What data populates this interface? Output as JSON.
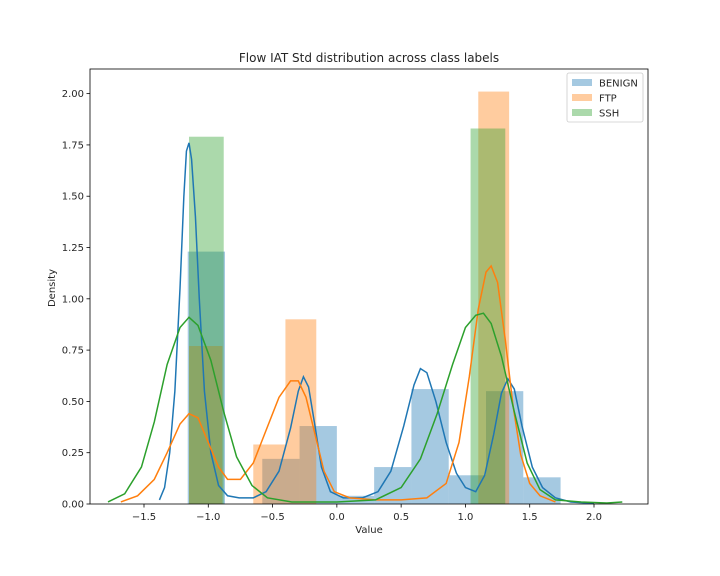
{
  "chart_data": {
    "type": "histogram_kde",
    "title": "Flow IAT Std distribution across class labels",
    "xlabel": "Value",
    "ylabel": "Density",
    "xlim": [
      -1.92,
      2.42
    ],
    "ylim": [
      0,
      2.12
    ],
    "xticks": [
      -1.5,
      -1.0,
      -0.5,
      0.0,
      0.5,
      1.0,
      1.5,
      2.0
    ],
    "xtick_labels": [
      "−1.5",
      "−1.0",
      "−0.5",
      "0.0",
      "0.5",
      "1.0",
      "1.5",
      "2.0"
    ],
    "yticks": [
      0.0,
      0.25,
      0.5,
      0.75,
      1.0,
      1.25,
      1.5,
      1.75,
      2.0
    ],
    "ytick_labels": [
      "0.00",
      "0.25",
      "0.50",
      "0.75",
      "1.00",
      "1.25",
      "1.50",
      "1.75",
      "2.00"
    ],
    "grid": false,
    "legend_position": "top-right",
    "series": [
      {
        "name": "BENIGN",
        "color": "#1f77b4",
        "bars": [
          {
            "x0": -1.16,
            "x1": -0.87,
            "y": 1.23
          },
          {
            "x0": -0.58,
            "x1": -0.29,
            "y": 0.22
          },
          {
            "x0": -0.29,
            "x1": 0.0,
            "y": 0.38
          },
          {
            "x0": 0.0,
            "x1": 0.29,
            "y": 0.04
          },
          {
            "x0": 0.29,
            "x1": 0.58,
            "y": 0.18
          },
          {
            "x0": 0.58,
            "x1": 0.87,
            "y": 0.56
          },
          {
            "x0": 0.87,
            "x1": 1.16,
            "y": 0.14
          },
          {
            "x0": 1.16,
            "x1": 1.45,
            "y": 0.55
          },
          {
            "x0": 1.45,
            "x1": 1.74,
            "y": 0.13
          }
        ],
        "kde": [
          [
            -1.38,
            0.02
          ],
          [
            -1.34,
            0.08
          ],
          [
            -1.3,
            0.25
          ],
          [
            -1.26,
            0.55
          ],
          [
            -1.22,
            1.05
          ],
          [
            -1.19,
            1.5
          ],
          [
            -1.17,
            1.72
          ],
          [
            -1.15,
            1.76
          ],
          [
            -1.13,
            1.68
          ],
          [
            -1.1,
            1.4
          ],
          [
            -1.07,
            1.0
          ],
          [
            -1.03,
            0.55
          ],
          [
            -0.98,
            0.25
          ],
          [
            -0.92,
            0.09
          ],
          [
            -0.85,
            0.04
          ],
          [
            -0.76,
            0.03
          ],
          [
            -0.65,
            0.03
          ],
          [
            -0.55,
            0.06
          ],
          [
            -0.45,
            0.16
          ],
          [
            -0.36,
            0.37
          ],
          [
            -0.3,
            0.55
          ],
          [
            -0.26,
            0.62
          ],
          [
            -0.22,
            0.57
          ],
          [
            -0.17,
            0.38
          ],
          [
            -0.12,
            0.18
          ],
          [
            -0.05,
            0.06
          ],
          [
            0.05,
            0.03
          ],
          [
            0.2,
            0.03
          ],
          [
            0.32,
            0.06
          ],
          [
            0.42,
            0.16
          ],
          [
            0.52,
            0.38
          ],
          [
            0.6,
            0.58
          ],
          [
            0.65,
            0.66
          ],
          [
            0.7,
            0.64
          ],
          [
            0.77,
            0.5
          ],
          [
            0.85,
            0.3
          ],
          [
            0.93,
            0.15
          ],
          [
            1.0,
            0.08
          ],
          [
            1.08,
            0.06
          ],
          [
            1.15,
            0.14
          ],
          [
            1.22,
            0.34
          ],
          [
            1.28,
            0.54
          ],
          [
            1.33,
            0.61
          ],
          [
            1.38,
            0.56
          ],
          [
            1.44,
            0.38
          ],
          [
            1.52,
            0.18
          ],
          [
            1.6,
            0.08
          ],
          [
            1.7,
            0.03
          ],
          [
            1.82,
            0.01
          ],
          [
            2.0,
            0.003
          ]
        ]
      },
      {
        "name": "FTP",
        "color": "#ff7f0e",
        "bars": [
          {
            "x0": -1.15,
            "x1": -0.89,
            "y": 0.77
          },
          {
            "x0": -0.65,
            "x1": -0.4,
            "y": 0.29
          },
          {
            "x0": -0.4,
            "x1": -0.16,
            "y": 0.9
          },
          {
            "x0": 1.1,
            "x1": 1.34,
            "y": 2.01
          }
        ],
        "kde": [
          [
            -1.68,
            0.01
          ],
          [
            -1.55,
            0.04
          ],
          [
            -1.42,
            0.12
          ],
          [
            -1.32,
            0.25
          ],
          [
            -1.22,
            0.39
          ],
          [
            -1.15,
            0.44
          ],
          [
            -1.08,
            0.42
          ],
          [
            -1.0,
            0.3
          ],
          [
            -0.92,
            0.18
          ],
          [
            -0.85,
            0.12
          ],
          [
            -0.75,
            0.12
          ],
          [
            -0.65,
            0.2
          ],
          [
            -0.55,
            0.36
          ],
          [
            -0.45,
            0.52
          ],
          [
            -0.36,
            0.6
          ],
          [
            -0.3,
            0.6
          ],
          [
            -0.24,
            0.52
          ],
          [
            -0.17,
            0.34
          ],
          [
            -0.1,
            0.16
          ],
          [
            -0.02,
            0.06
          ],
          [
            0.1,
            0.03
          ],
          [
            0.3,
            0.02
          ],
          [
            0.5,
            0.02
          ],
          [
            0.7,
            0.03
          ],
          [
            0.85,
            0.1
          ],
          [
            0.95,
            0.3
          ],
          [
            1.03,
            0.62
          ],
          [
            1.1,
            0.95
          ],
          [
            1.16,
            1.13
          ],
          [
            1.2,
            1.16
          ],
          [
            1.25,
            1.08
          ],
          [
            1.31,
            0.8
          ],
          [
            1.37,
            0.48
          ],
          [
            1.43,
            0.24
          ],
          [
            1.5,
            0.1
          ],
          [
            1.58,
            0.04
          ],
          [
            1.7,
            0.01
          ]
        ]
      },
      {
        "name": "SSH",
        "color": "#2ca02c",
        "bars": [
          {
            "x0": -1.15,
            "x1": -0.88,
            "y": 1.79
          },
          {
            "x0": 1.04,
            "x1": 1.31,
            "y": 1.83
          }
        ],
        "kde": [
          [
            -1.78,
            0.01
          ],
          [
            -1.65,
            0.05
          ],
          [
            -1.52,
            0.18
          ],
          [
            -1.42,
            0.4
          ],
          [
            -1.32,
            0.68
          ],
          [
            -1.22,
            0.86
          ],
          [
            -1.15,
            0.91
          ],
          [
            -1.08,
            0.87
          ],
          [
            -0.98,
            0.7
          ],
          [
            -0.88,
            0.45
          ],
          [
            -0.78,
            0.23
          ],
          [
            -0.66,
            0.09
          ],
          [
            -0.54,
            0.03
          ],
          [
            -0.35,
            0.01
          ],
          [
            0.0,
            0.01
          ],
          [
            0.3,
            0.02
          ],
          [
            0.5,
            0.08
          ],
          [
            0.65,
            0.22
          ],
          [
            0.78,
            0.44
          ],
          [
            0.9,
            0.68
          ],
          [
            1.0,
            0.86
          ],
          [
            1.08,
            0.92
          ],
          [
            1.14,
            0.93
          ],
          [
            1.2,
            0.88
          ],
          [
            1.28,
            0.72
          ],
          [
            1.38,
            0.45
          ],
          [
            1.48,
            0.2
          ],
          [
            1.58,
            0.07
          ],
          [
            1.7,
            0.02
          ],
          [
            1.9,
            0.01
          ],
          [
            2.1,
            0.005
          ],
          [
            2.22,
            0.01
          ]
        ]
      }
    ]
  }
}
